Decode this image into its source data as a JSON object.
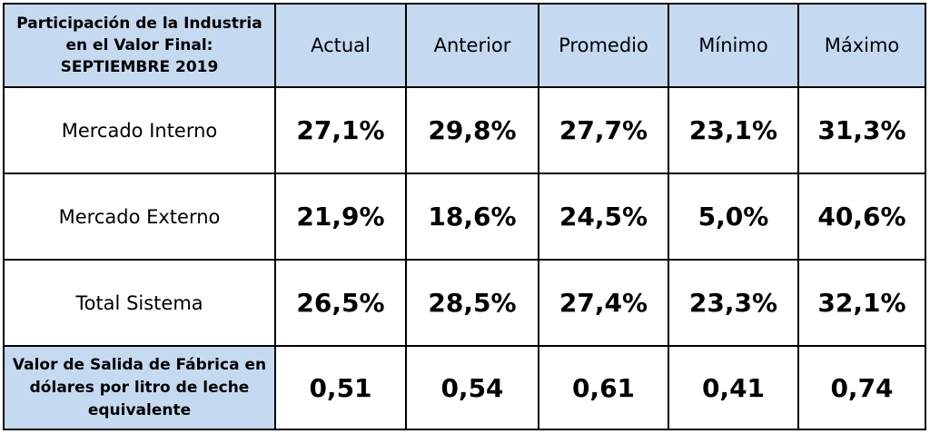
{
  "table": {
    "corner_header": [
      "Participación de la Industria",
      "en el Valor Final:",
      "SEPTIEMBRE 2019"
    ],
    "columns": [
      "Actual",
      "Anterior",
      "Promedio",
      "Mínimo",
      "Máximo"
    ],
    "rows": [
      {
        "label": "Mercado Interno",
        "values": [
          "27,1%",
          "29,8%",
          "27,7%",
          "23,1%",
          "31,3%"
        ]
      },
      {
        "label": "Mercado Externo",
        "values": [
          "21,9%",
          "18,6%",
          "24,5%",
          "5,0%",
          "40,6%"
        ]
      },
      {
        "label": "Total Sistema",
        "values": [
          "26,5%",
          "28,5%",
          "27,4%",
          "23,3%",
          "32,1%"
        ]
      }
    ],
    "footer": {
      "label": [
        "Valor de Salida de Fábrica en",
        "dólares por litro de leche",
        "equivalente"
      ],
      "values": [
        "0,51",
        "0,54",
        "0,61",
        "0,41",
        "0,74"
      ]
    }
  },
  "colors": {
    "header_fill": "#c5d9f1",
    "border": "#000000"
  }
}
